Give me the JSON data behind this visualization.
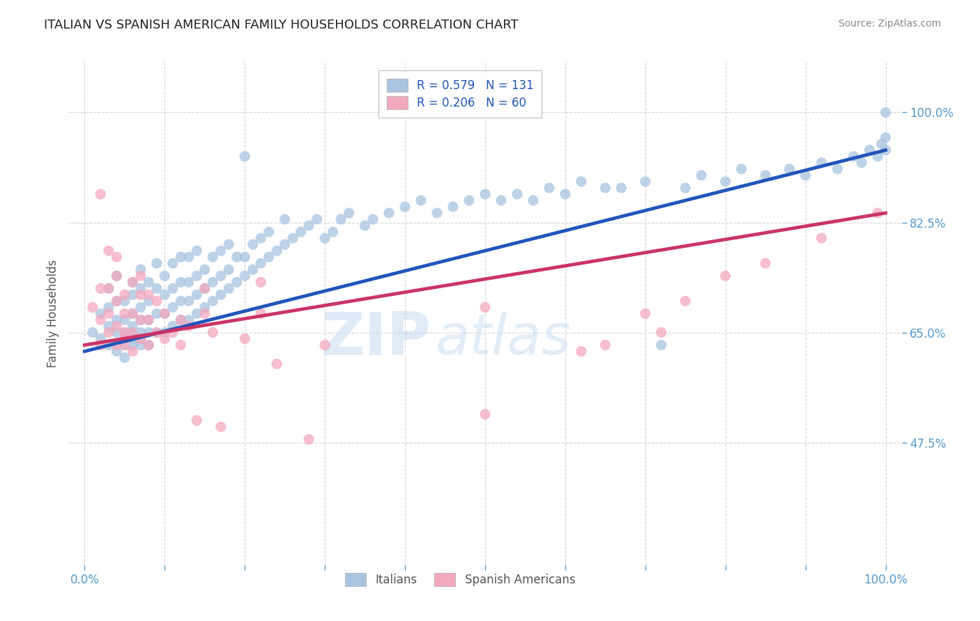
{
  "title": "ITALIAN VS SPANISH AMERICAN FAMILY HOUSEHOLDS CORRELATION CHART",
  "source": "Source: ZipAtlas.com",
  "ylabel": "Family Households",
  "y_tick_labels": [
    "47.5%",
    "65.0%",
    "82.5%",
    "100.0%"
  ],
  "y_tick_values": [
    0.475,
    0.65,
    0.825,
    1.0
  ],
  "x_lim": [
    -0.02,
    1.02
  ],
  "y_lim": [
    0.28,
    1.08
  ],
  "legend1_label": "R = 0.579   N = 131",
  "legend2_label": "R = 0.206   N = 60",
  "watermark_line1": "ZIP",
  "watermark_line2": "atlas",
  "blue_color": "#a8c4e0",
  "blue_line_color": "#2255bb",
  "pink_color": "#f4a8be",
  "pink_line_color": "#cc3366",
  "grid_color": "#cccccc",
  "title_color": "#222222",
  "axis_label_color": "#555555",
  "tick_color_blue": "#5599cc",
  "background_color": "#ffffff",
  "blue_line_x0": 0.0,
  "blue_line_x1": 1.0,
  "blue_line_y0": 0.62,
  "blue_line_y1": 0.94,
  "pink_line_x0": 0.0,
  "pink_line_x1": 1.0,
  "pink_line_y0": 0.63,
  "pink_line_y1": 0.84,
  "blue_scatter_x": [
    0.01,
    0.02,
    0.02,
    0.03,
    0.03,
    0.03,
    0.03,
    0.04,
    0.04,
    0.04,
    0.04,
    0.04,
    0.05,
    0.05,
    0.05,
    0.05,
    0.05,
    0.05,
    0.06,
    0.06,
    0.06,
    0.06,
    0.06,
    0.06,
    0.06,
    0.07,
    0.07,
    0.07,
    0.07,
    0.07,
    0.07,
    0.07,
    0.08,
    0.08,
    0.08,
    0.08,
    0.08,
    0.09,
    0.09,
    0.09,
    0.09,
    0.1,
    0.1,
    0.1,
    0.1,
    0.11,
    0.11,
    0.11,
    0.11,
    0.12,
    0.12,
    0.12,
    0.12,
    0.13,
    0.13,
    0.13,
    0.13,
    0.14,
    0.14,
    0.14,
    0.14,
    0.15,
    0.15,
    0.15,
    0.16,
    0.16,
    0.16,
    0.17,
    0.17,
    0.17,
    0.18,
    0.18,
    0.18,
    0.19,
    0.19,
    0.2,
    0.2,
    0.2,
    0.21,
    0.21,
    0.22,
    0.22,
    0.23,
    0.23,
    0.24,
    0.25,
    0.25,
    0.26,
    0.27,
    0.28,
    0.29,
    0.3,
    0.31,
    0.32,
    0.33,
    0.35,
    0.36,
    0.38,
    0.4,
    0.42,
    0.44,
    0.46,
    0.48,
    0.5,
    0.52,
    0.54,
    0.56,
    0.58,
    0.6,
    0.62,
    0.65,
    0.67,
    0.7,
    0.72,
    0.75,
    0.77,
    0.8,
    0.82,
    0.85,
    0.88,
    0.9,
    0.92,
    0.94,
    0.96,
    0.97,
    0.98,
    0.99,
    0.995,
    1.0,
    1.0,
    1.0
  ],
  "blue_scatter_y": [
    0.65,
    0.64,
    0.68,
    0.63,
    0.66,
    0.69,
    0.72,
    0.62,
    0.65,
    0.67,
    0.7,
    0.74,
    0.61,
    0.63,
    0.65,
    0.67,
    0.7,
    0.64,
    0.63,
    0.65,
    0.66,
    0.68,
    0.71,
    0.64,
    0.73,
    0.63,
    0.65,
    0.67,
    0.69,
    0.72,
    0.64,
    0.75,
    0.65,
    0.67,
    0.7,
    0.63,
    0.73,
    0.65,
    0.68,
    0.72,
    0.76,
    0.65,
    0.68,
    0.71,
    0.74,
    0.66,
    0.69,
    0.72,
    0.76,
    0.67,
    0.7,
    0.73,
    0.77,
    0.67,
    0.7,
    0.73,
    0.77,
    0.68,
    0.71,
    0.74,
    0.78,
    0.69,
    0.72,
    0.75,
    0.7,
    0.73,
    0.77,
    0.71,
    0.74,
    0.78,
    0.72,
    0.75,
    0.79,
    0.73,
    0.77,
    0.74,
    0.77,
    0.93,
    0.75,
    0.79,
    0.76,
    0.8,
    0.77,
    0.81,
    0.78,
    0.79,
    0.83,
    0.8,
    0.81,
    0.82,
    0.83,
    0.8,
    0.81,
    0.83,
    0.84,
    0.82,
    0.83,
    0.84,
    0.85,
    0.86,
    0.84,
    0.85,
    0.86,
    0.87,
    0.86,
    0.87,
    0.86,
    0.88,
    0.87,
    0.89,
    0.88,
    0.88,
    0.89,
    0.63,
    0.88,
    0.9,
    0.89,
    0.91,
    0.9,
    0.91,
    0.9,
    0.92,
    0.91,
    0.93,
    0.92,
    0.94,
    0.93,
    0.95,
    0.94,
    0.96,
    1.0
  ],
  "pink_scatter_x": [
    0.01,
    0.02,
    0.02,
    0.02,
    0.02,
    0.03,
    0.03,
    0.03,
    0.03,
    0.04,
    0.04,
    0.04,
    0.04,
    0.04,
    0.05,
    0.05,
    0.05,
    0.05,
    0.05,
    0.06,
    0.06,
    0.06,
    0.06,
    0.07,
    0.07,
    0.07,
    0.07,
    0.08,
    0.08,
    0.08,
    0.09,
    0.09,
    0.1,
    0.1,
    0.11,
    0.12,
    0.12,
    0.13,
    0.14,
    0.15,
    0.15,
    0.16,
    0.17,
    0.2,
    0.22,
    0.22,
    0.24,
    0.28,
    0.3,
    0.5,
    0.5,
    0.62,
    0.65,
    0.7,
    0.72,
    0.75,
    0.8,
    0.85,
    0.92,
    0.99
  ],
  "pink_scatter_y": [
    0.69,
    0.63,
    0.67,
    0.72,
    0.87,
    0.65,
    0.68,
    0.72,
    0.78,
    0.63,
    0.66,
    0.7,
    0.74,
    0.77,
    0.63,
    0.65,
    0.68,
    0.71,
    0.64,
    0.62,
    0.65,
    0.68,
    0.73,
    0.64,
    0.67,
    0.71,
    0.74,
    0.63,
    0.67,
    0.71,
    0.65,
    0.7,
    0.64,
    0.68,
    0.65,
    0.63,
    0.67,
    0.66,
    0.51,
    0.68,
    0.72,
    0.65,
    0.5,
    0.64,
    0.68,
    0.73,
    0.6,
    0.48,
    0.63,
    0.52,
    0.69,
    0.62,
    0.63,
    0.68,
    0.65,
    0.7,
    0.74,
    0.76,
    0.8,
    0.84
  ]
}
